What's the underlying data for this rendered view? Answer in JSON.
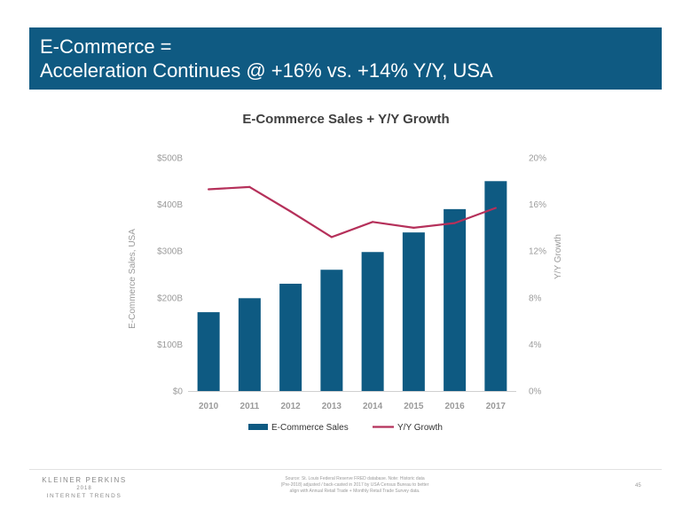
{
  "banner": {
    "line1": "E-Commerce =",
    "line2": "Acceleration Continues @ +16% vs. +14% Y/Y, USA"
  },
  "colors": {
    "banner": "#0f5a82",
    "bar": "#0e5a82",
    "line": "#b5305a"
  },
  "chart_data": {
    "type": "bar",
    "title": "E-Commerce Sales + Y/Y Growth",
    "categories": [
      "2010",
      "2011",
      "2012",
      "2013",
      "2014",
      "2015",
      "2016",
      "2017"
    ],
    "series": [
      {
        "name": "E-Commerce Sales",
        "type": "bar",
        "axis": "left",
        "values": [
          169,
          199,
          230,
          260,
          298,
          340,
          390,
          450
        ]
      },
      {
        "name": "Y/Y Growth",
        "type": "line",
        "axis": "right",
        "values": [
          17.3,
          17.5,
          15.4,
          13.2,
          14.5,
          14.0,
          14.4,
          15.7
        ]
      }
    ],
    "ylabel": "E-Commerce Sales, USA",
    "y2label": "Y/Y Growth",
    "ylim": [
      0,
      500
    ],
    "y2lim": [
      0,
      20
    ],
    "yticks": [
      "$0",
      "$100B",
      "$200B",
      "$300B",
      "$400B",
      "$500B"
    ],
    "y2ticks": [
      "0%",
      "4%",
      "8%",
      "12%",
      "16%",
      "20%"
    ],
    "grid": false,
    "legend": "bottom"
  },
  "footer": {
    "brand": "KLEINER PERKINS",
    "year": "2018",
    "sub": "INTERNET TRENDS",
    "source_line1": "Source: St. Louis Federal Reserve FRED database.  Note: Historic data",
    "source_line2": "(Pre-2018) adjusted / back-casted in 2017 by USA Census Bureau to better",
    "source_line3": "align with Annual Retail Trade + Monthly Retail Trade Survey data.",
    "page": "45"
  }
}
